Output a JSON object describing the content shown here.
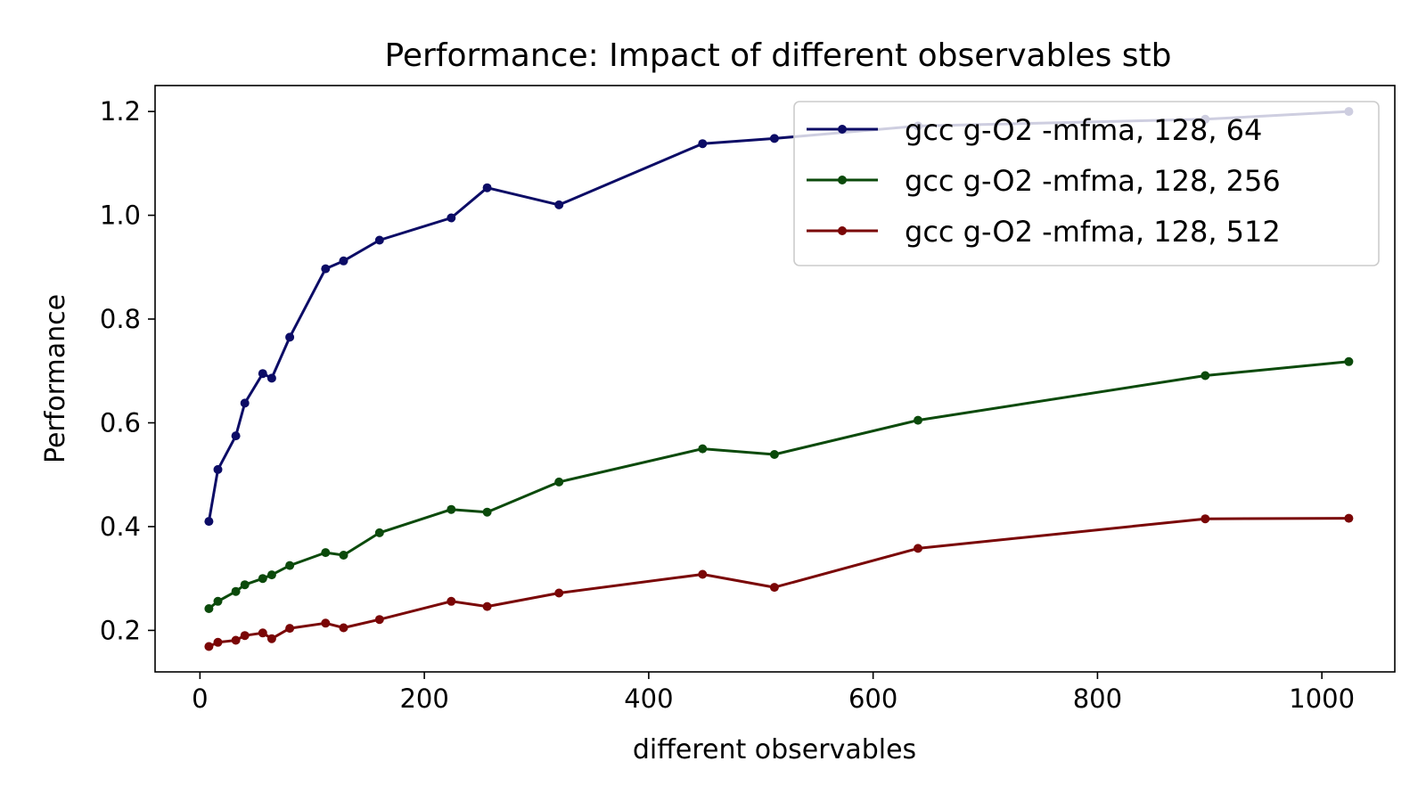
{
  "chart_data": {
    "type": "line",
    "title": "Performance: Impact of different observables stb",
    "xlabel": "different observables",
    "ylabel": "Performance",
    "xlim": [
      -40,
      1065
    ],
    "ylim": [
      0.12,
      1.25
    ],
    "xticks": [
      0,
      200,
      400,
      600,
      800,
      1000
    ],
    "yticks": [
      0.2,
      0.4,
      0.6,
      0.8,
      1.0,
      1.2
    ],
    "x": [
      8,
      16,
      32,
      40,
      56,
      64,
      80,
      112,
      128,
      160,
      224,
      256,
      320,
      448,
      512,
      640,
      896,
      1024
    ],
    "legend_position": "top-right",
    "grid": false,
    "series": [
      {
        "name": "gcc g-O2 -mfma, 128, 64",
        "color": "#0c0c66",
        "values": [
          0.41,
          0.51,
          0.575,
          0.638,
          0.695,
          0.686,
          0.765,
          0.897,
          0.912,
          0.952,
          0.995,
          1.053,
          1.02,
          1.138,
          1.148,
          1.172,
          1.185,
          1.2
        ]
      },
      {
        "name": "gcc g-O2 -mfma, 128, 256",
        "color": "#0b4a0b",
        "values": [
          0.242,
          0.256,
          0.275,
          0.288,
          0.3,
          0.307,
          0.325,
          0.35,
          0.345,
          0.388,
          0.433,
          0.428,
          0.486,
          0.55,
          0.539,
          0.605,
          0.691,
          0.718
        ]
      },
      {
        "name": "gcc g-O2 -mfma, 128, 512",
        "color": "#7a0606",
        "values": [
          0.169,
          0.177,
          0.181,
          0.19,
          0.195,
          0.184,
          0.204,
          0.214,
          0.205,
          0.221,
          0.256,
          0.246,
          0.272,
          0.308,
          0.283,
          0.358,
          0.415,
          0.416
        ]
      }
    ]
  }
}
